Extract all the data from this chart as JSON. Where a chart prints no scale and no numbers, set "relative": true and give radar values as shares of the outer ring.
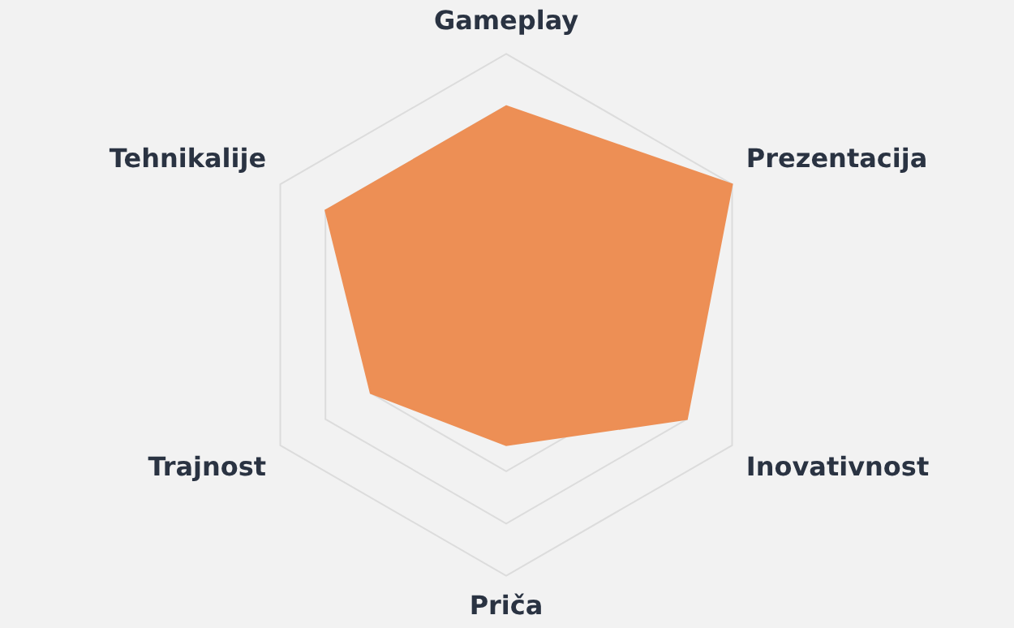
{
  "chart_data": {
    "type": "radar",
    "relative": true,
    "grid": true,
    "legend": false,
    "categories": [
      "Gameplay",
      "Prezentacija",
      "Inovativnost",
      "Priča",
      "Trajnost",
      "Tehnikalije"
    ],
    "series": [
      {
        "color": "#ed8f55",
        "values": [
          0.8,
          1.0,
          0.8,
          0.5,
          0.6,
          0.8
        ]
      }
    ]
  }
}
